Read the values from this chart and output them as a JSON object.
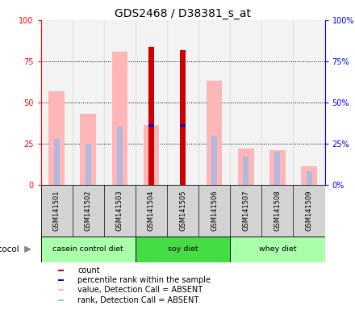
{
  "title": "GDS2468 / D38381_s_at",
  "samples": [
    "GSM141501",
    "GSM141502",
    "GSM141503",
    "GSM141504",
    "GSM141505",
    "GSM141506",
    "GSM141507",
    "GSM141508",
    "GSM141509"
  ],
  "count_values": [
    0,
    0,
    0,
    84,
    82,
    0,
    0,
    0,
    0
  ],
  "percentile_values": [
    0,
    0,
    0,
    36,
    36,
    0,
    0,
    0,
    0
  ],
  "absent_value": [
    57,
    43,
    81,
    36,
    0,
    63,
    22,
    21,
    11
  ],
  "absent_rank": [
    28,
    25,
    35,
    0,
    0,
    30,
    17,
    20,
    8
  ],
  "count_color": "#cc0000",
  "percentile_color": "#0000cc",
  "absent_value_color": "#ffb6b6",
  "absent_rank_color": "#b0b8e0",
  "ylim": [
    0,
    100
  ],
  "bar_width": 0.5,
  "narrow_bar_width": 0.18,
  "background_plot": "#ffffff",
  "background_sample": "#d3d3d3",
  "title_fontsize": 10,
  "tick_fontsize": 7,
  "group_spans": [
    [
      0,
      2,
      "casein control diet",
      "#aaffaa"
    ],
    [
      3,
      5,
      "soy diet",
      "#44dd44"
    ],
    [
      6,
      8,
      "whey diet",
      "#aaffaa"
    ]
  ]
}
